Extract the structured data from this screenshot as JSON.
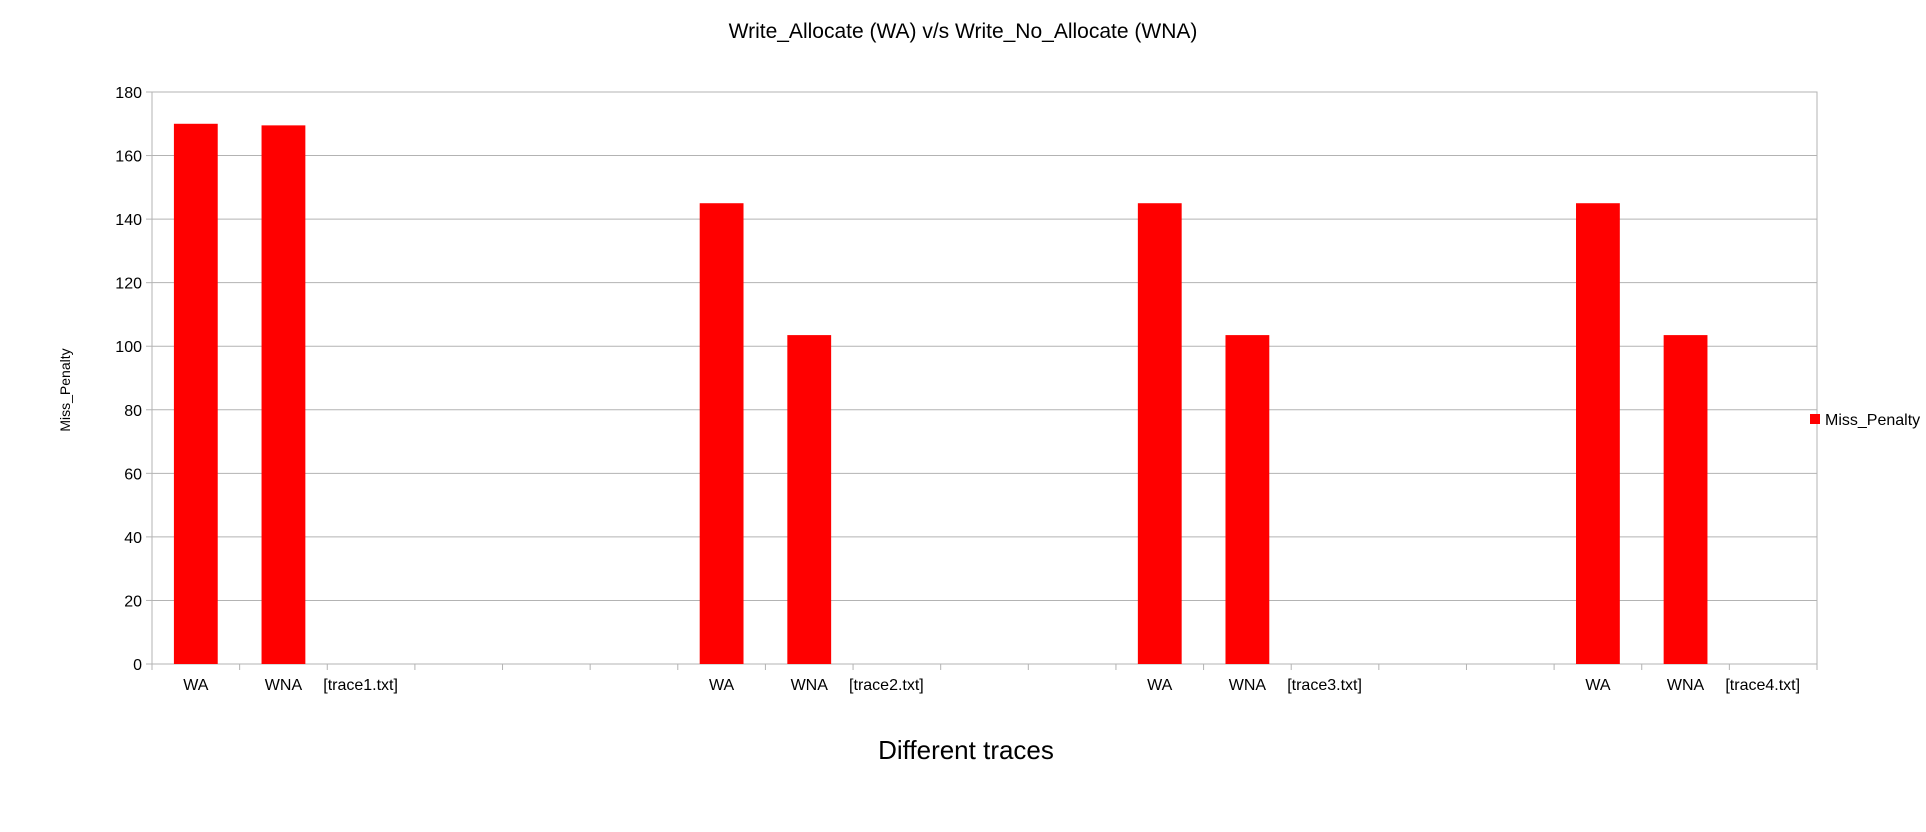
{
  "chart_data": {
    "type": "bar",
    "title": "Write_Allocate (WA) v/s Write_No_Allocate (WNA)",
    "xlabel": "Different traces",
    "ylabel": "Miss_Penalty",
    "ylim": [
      0,
      180
    ],
    "yticks": [
      0,
      20,
      40,
      60,
      80,
      100,
      120,
      140,
      160,
      180
    ],
    "grid": true,
    "legend_position": "right",
    "bar_color": "#ff0000",
    "categories": [
      "WA",
      "WNA",
      "[trace1.txt]",
      "",
      "",
      "",
      "WA",
      "WNA",
      "[trace2.txt]",
      "",
      "",
      "WA",
      "WNA",
      "[trace3.txt]",
      "",
      "",
      "WA",
      "WNA",
      "[trace4.txt]"
    ],
    "series": [
      {
        "name": "Miss_Penalty",
        "values": [
          170,
          169.5,
          null,
          null,
          null,
          null,
          145,
          103.5,
          null,
          null,
          null,
          145,
          103.5,
          null,
          null,
          null,
          145,
          103.5,
          null
        ]
      }
    ]
  }
}
